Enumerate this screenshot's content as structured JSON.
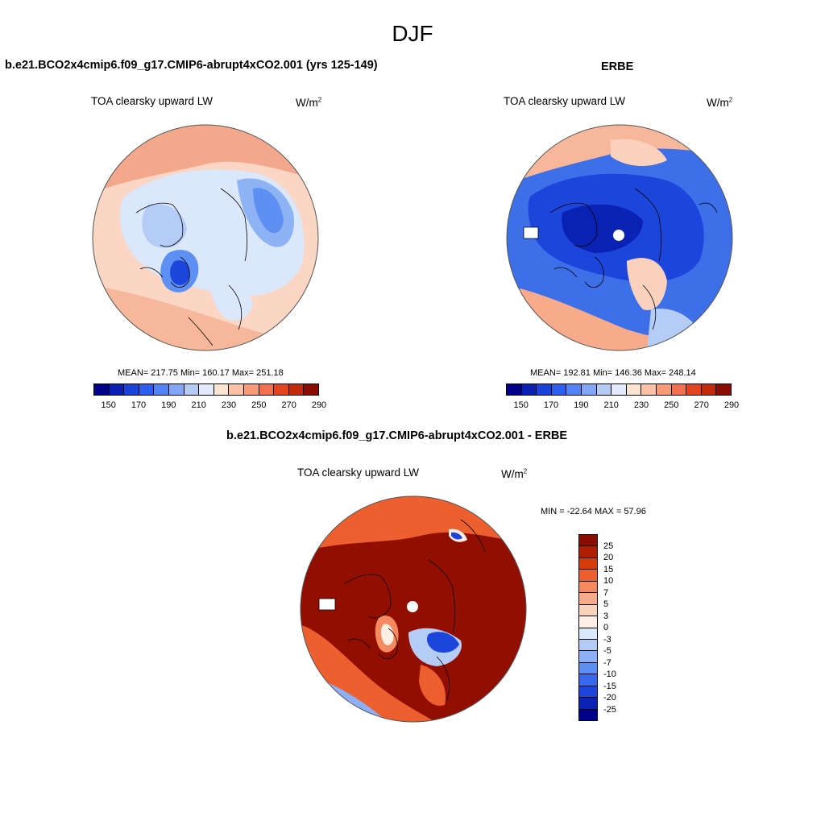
{
  "page_title": "DJF",
  "panels": {
    "model": {
      "title": "b.e21.BCO2x4cmip6.f09_g17.CMIP6-abrupt4xCO2.001 (yrs 125-149)",
      "variable": "TOA clearsky upward LW",
      "units_base": "W/m",
      "units_exp": "2",
      "stats": "MEAN= 217.75  Min= 160.17  Max= 251.18"
    },
    "obs": {
      "title": "ERBE",
      "variable": "TOA clearsky upward LW",
      "units_base": "W/m",
      "units_exp": "2",
      "stats": "MEAN= 192.81  Min= 146.36  Max= 248.14"
    },
    "diff": {
      "title": "b.e21.BCO2x4cmip6.f09_g17.CMIP6-abrupt4xCO2.001 - ERBE",
      "variable": "TOA clearsky upward LW",
      "units_base": "W/m",
      "units_exp": "2",
      "stats": "MIN = -22.64 MAX =  57.96"
    }
  },
  "abs_colorbar": {
    "colors": [
      "#00008b",
      "#0a1fb4",
      "#1842d8",
      "#2c5ef0",
      "#5283f5",
      "#83a7f6",
      "#b4cbf6",
      "#e1ebfb",
      "#fde3d2",
      "#fcc2a6",
      "#f89b78",
      "#f2704e",
      "#e3431f",
      "#c22a0a",
      "#8b0c00"
    ],
    "labels": [
      "150",
      "170",
      "190",
      "210",
      "230",
      "250",
      "270",
      "290"
    ]
  },
  "diff_colorbar": {
    "colors": [
      "#8b0c00",
      "#b01e02",
      "#d43c0a",
      "#ee5f2f",
      "#f58a60",
      "#f7ab8a",
      "#fad1bd",
      "#fdefe6",
      "#dbe8fb",
      "#b5cdf6",
      "#8bb0f5",
      "#5e8ff3",
      "#3868ed",
      "#1c45dc",
      "#0a22b4",
      "#00008b"
    ],
    "labels": [
      "25",
      "20",
      "15",
      "10",
      "7",
      "5",
      "3",
      "0",
      "-3",
      "-5",
      "-7",
      "-10",
      "-15",
      "-20",
      "-25"
    ]
  },
  "map_colors": {
    "model_base": "#fbd6c4",
    "obs_base": "#3d6fe8",
    "diff_base": "#920e00"
  }
}
